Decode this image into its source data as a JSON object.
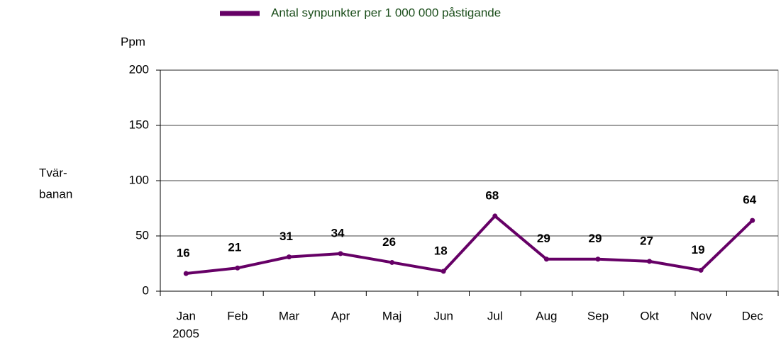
{
  "chart_data": {
    "type": "line",
    "legend": "Antal synpunkter  per 1 000 000 påstigande",
    "y_label": "Ppm",
    "side_label": [
      "Tvär-",
      "banan"
    ],
    "categories": [
      "Jan",
      "Feb",
      "Mar",
      "Apr",
      "Maj",
      "Jun",
      "Jul",
      "Aug",
      "Sep",
      "Okt",
      "Nov",
      "Dec"
    ],
    "year": "2005",
    "series": [
      {
        "name": "Antal synpunkter  per 1 000 000 påstigande",
        "color": "#660066",
        "values": [
          16,
          21,
          31,
          34,
          26,
          18,
          68,
          29,
          29,
          27,
          19,
          64
        ]
      }
    ],
    "ylim": [
      0,
      200
    ],
    "yticks": [
      0,
      50,
      100,
      150,
      200
    ],
    "grid": true
  }
}
